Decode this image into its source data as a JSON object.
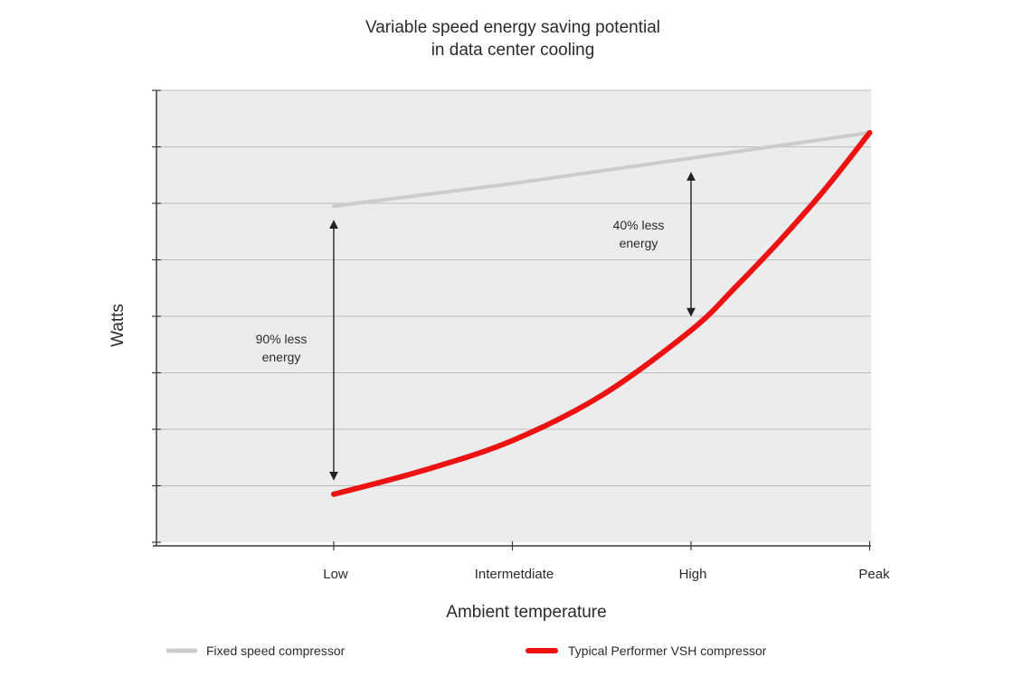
{
  "chart_data": {
    "type": "line",
    "title_lines": [
      "Variable speed energy saving potential",
      "in data center cooling"
    ],
    "xlabel": "Ambient temperature",
    "ylabel": "Watts",
    "categories": [
      "Low",
      "Intermetdiate",
      "High",
      "Peak"
    ],
    "ylim": [
      0,
      8
    ],
    "y_gridlines": 8,
    "grid": true,
    "legend_position": "bottom",
    "series": [
      {
        "name": "Fixed speed compressor",
        "color": "#cccccc",
        "x": [
          0,
          1,
          2,
          3
        ],
        "values": [
          5.95,
          6.35,
          6.8,
          7.25
        ]
      },
      {
        "name": "Typical Performer VSH compressor",
        "color": "#ee1111",
        "x": [
          0,
          0.5,
          1,
          1.5,
          2,
          2.25,
          2.5,
          2.75,
          3
        ],
        "values": [
          0.85,
          1.27,
          1.8,
          2.6,
          3.75,
          4.52,
          5.35,
          6.25,
          7.25
        ]
      }
    ],
    "annotations": [
      {
        "lines": [
          "90% less",
          "energy"
        ],
        "x": 0,
        "y_top": 5.95,
        "y_bottom": 0.85
      },
      {
        "lines": [
          "40% less",
          "energy"
        ],
        "x": 2,
        "y_top": 6.8,
        "y_bottom": 3.75
      }
    ]
  }
}
